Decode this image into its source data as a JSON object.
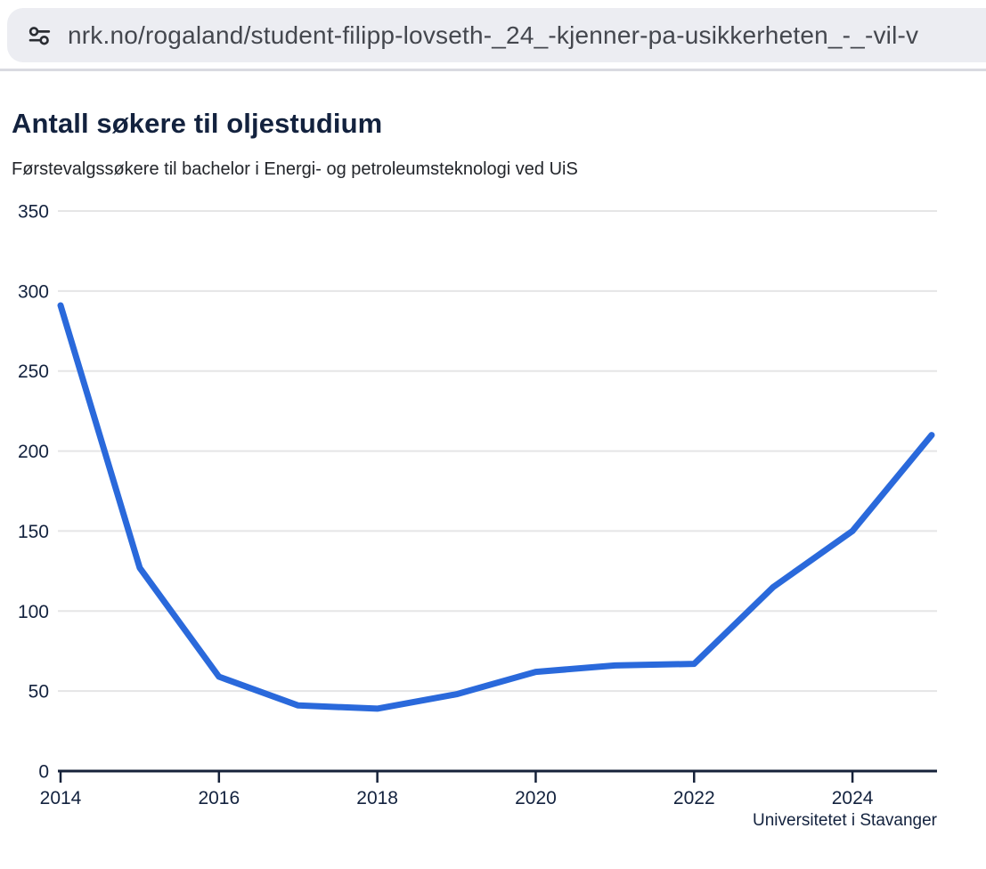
{
  "browser": {
    "url": "nrk.no/rogaland/student-filipp-lovseth-_24_-kjenner-pa-usikkerheten_-_-vil-v"
  },
  "colors": {
    "line": "#2A69DB",
    "title": "#13223E",
    "subtitle": "#23262B",
    "axis": "#16223A",
    "grid": "#E5E5E6",
    "tick_label": "#13223E",
    "urlbar_bg": "#ECEDF2",
    "url_text": "#44474E",
    "divider": "#D9DAE1"
  },
  "chart_data": {
    "type": "line",
    "title": "Antall søkere til oljestudium",
    "subtitle": "Førstevalgssøkere til bachelor i Energi- og petroleumsteknologi ved UiS",
    "source": "Universitetet i Stavanger",
    "x": [
      2014,
      2015,
      2016,
      2017,
      2018,
      2019,
      2020,
      2021,
      2022,
      2023,
      2024,
      2025
    ],
    "values": [
      291,
      127,
      59,
      41,
      39,
      48,
      62,
      66,
      67,
      115,
      150,
      210
    ],
    "xticks": [
      2014,
      2016,
      2018,
      2020,
      2022,
      2024
    ],
    "yticks": [
      0,
      50,
      100,
      150,
      200,
      250,
      300,
      350
    ],
    "xlim": [
      2014,
      2025
    ],
    "ylim": [
      0,
      350
    ],
    "grid": "horizontal",
    "legend": "none"
  }
}
